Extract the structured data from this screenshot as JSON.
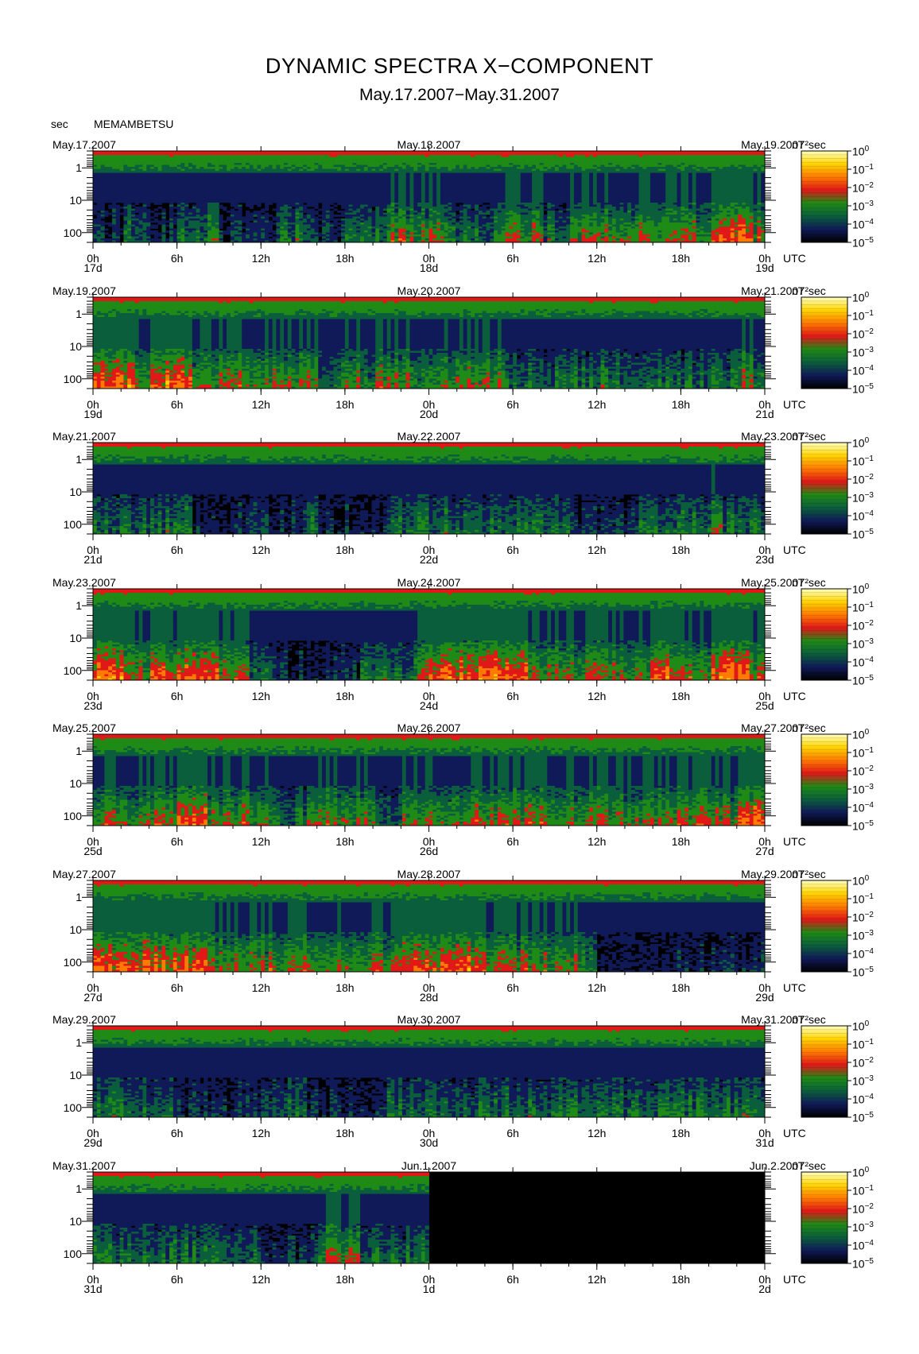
{
  "title": "DYNAMIC SPECTRA X−COMPONENT",
  "subtitle": "May.17.2007−May.31.2007",
  "unit_label": "sec",
  "station": "MEMAMBETSU",
  "utc_label": "UTC",
  "colorbar_unit": "nT²sec",
  "colors": {
    "background": "#000000",
    "colormap": [
      "#000000",
      "#101a58",
      "#0b5e3c",
      "#1f8a16",
      "#e01818",
      "#ff7a00",
      "#ffd400",
      "#ffffc0"
    ]
  },
  "chart_data": {
    "type": "heatmap",
    "x_axis": {
      "quantity": "time",
      "ticks": [
        "0h",
        "6h",
        "12h",
        "18h",
        "0h",
        "6h",
        "12h",
        "18h",
        "0h"
      ],
      "span_hours": 48
    },
    "y_axis": {
      "quantity": "period",
      "scale": "log",
      "ticks": [
        "1",
        "10",
        "100"
      ],
      "range": [
        0.3,
        200
      ]
    },
    "colorbar": {
      "scale": "log",
      "range": [
        1e-05,
        1
      ],
      "ticks": [
        "10",
        "10",
        "10",
        "10",
        "10",
        "10"
      ],
      "tick_exponents": [
        "0",
        "−1",
        "−2",
        "−3",
        "−4",
        "−5"
      ]
    },
    "panels": [
      {
        "start_date": "May.17.2007",
        "mid_date": "May.18.2007",
        "end_date": "May.19.2007",
        "day_labels": [
          "17d",
          "18d",
          "19d"
        ],
        "data_until_hours": 48,
        "activity": [
          1,
          1,
          2,
          1,
          1,
          1,
          2,
          2,
          3,
          1,
          1,
          1,
          1,
          2,
          2,
          1,
          1,
          1,
          2,
          2,
          2,
          3,
          3,
          3,
          3,
          2,
          2,
          2,
          2,
          3,
          3,
          3,
          2,
          2,
          3,
          3,
          3,
          3,
          3,
          3,
          3,
          3,
          3,
          3,
          4,
          4,
          4,
          3
        ]
      },
      {
        "start_date": "May.19.2007",
        "mid_date": "May.20.2007",
        "end_date": "May.21.2007",
        "day_labels": [
          "19d",
          "20d",
          "21d"
        ],
        "data_until_hours": 48,
        "activity": [
          4,
          4,
          4,
          3,
          4,
          4,
          4,
          3,
          3,
          3,
          3,
          3,
          3,
          3,
          3,
          3,
          2,
          2,
          3,
          2,
          3,
          3,
          3,
          2,
          3,
          3,
          3,
          3,
          3,
          2,
          2,
          2,
          2,
          2,
          2,
          2,
          2,
          2,
          2,
          2,
          2,
          2,
          2,
          2,
          2,
          2,
          3,
          2
        ]
      },
      {
        "start_date": "May.21.2007",
        "mid_date": "May.22.2007",
        "end_date": "May.23.2007",
        "day_labels": [
          "21d",
          "22d",
          "23d"
        ],
        "data_until_hours": 48,
        "activity": [
          2,
          2,
          2,
          2,
          2,
          2,
          2,
          1,
          1,
          1,
          1,
          1,
          1,
          1,
          1,
          2,
          1,
          1,
          1,
          1,
          1,
          2,
          2,
          2,
          2,
          2,
          2,
          2,
          2,
          2,
          2,
          2,
          2,
          2,
          1,
          1,
          1,
          1,
          1,
          2,
          2,
          2,
          2,
          2,
          3,
          2,
          2,
          2
        ]
      },
      {
        "start_date": "May.23.2007",
        "mid_date": "May.24.2007",
        "end_date": "May.25.2007",
        "day_labels": [
          "23d",
          "24d",
          "25d"
        ],
        "data_until_hours": 48,
        "activity": [
          4,
          4,
          4,
          3,
          4,
          3,
          4,
          4,
          4,
          3,
          3,
          2,
          2,
          1,
          1,
          1,
          1,
          1,
          1,
          2,
          2,
          2,
          2,
          3,
          4,
          4,
          4,
          4,
          4,
          4,
          4,
          3,
          3,
          3,
          3,
          3,
          3,
          3,
          3,
          3,
          4,
          3,
          3,
          3,
          4,
          4,
          4,
          3
        ]
      },
      {
        "start_date": "May.25.2007",
        "mid_date": "May.26.2007",
        "end_date": "May.27.2007",
        "day_labels": [
          "25d",
          "26d",
          "27d"
        ],
        "data_until_hours": 48,
        "activity": [
          3,
          3,
          3,
          3,
          3,
          3,
          4,
          4,
          3,
          3,
          3,
          3,
          3,
          2,
          2,
          3,
          3,
          3,
          3,
          3,
          2,
          2,
          3,
          3,
          3,
          3,
          3,
          3,
          3,
          3,
          3,
          3,
          3,
          3,
          3,
          3,
          3,
          3,
          3,
          3,
          3,
          3,
          3,
          3,
          3,
          3,
          4,
          4
        ]
      },
      {
        "start_date": "May.27.2007",
        "mid_date": "May.28.2007",
        "end_date": "May.29.2007",
        "day_labels": [
          "27d",
          "28d",
          "29d"
        ],
        "data_until_hours": 48,
        "activity": [
          4,
          4,
          4,
          4,
          4,
          4,
          4,
          4,
          3,
          3,
          3,
          3,
          3,
          3,
          3,
          3,
          3,
          3,
          3,
          3,
          3,
          3,
          4,
          4,
          4,
          4,
          4,
          4,
          3,
          3,
          3,
          3,
          3,
          3,
          3,
          2,
          0,
          0,
          0,
          0,
          0,
          1,
          1,
          1,
          1,
          1,
          1,
          1
        ]
      },
      {
        "start_date": "May.29.2007",
        "mid_date": "May.30.2007",
        "end_date": "May.31.2007",
        "day_labels": [
          "29d",
          "30d",
          "31d"
        ],
        "data_until_hours": 48,
        "activity": [
          2,
          2,
          2,
          2,
          2,
          2,
          1,
          1,
          1,
          1,
          1,
          1,
          1,
          2,
          2,
          1,
          1,
          1,
          1,
          1,
          1,
          2,
          2,
          2,
          2,
          2,
          2,
          2,
          2,
          2,
          2,
          2,
          2,
          2,
          2,
          2,
          2,
          2,
          2,
          2,
          2,
          2,
          2,
          2,
          2,
          2,
          2,
          2
        ]
      },
      {
        "start_date": "May.31.2007",
        "mid_date": "Jun.1.2007",
        "end_date": "Jun.2.2007",
        "day_labels": [
          "31d",
          "1d",
          "2d"
        ],
        "data_until_hours": 24,
        "activity": [
          2,
          2,
          2,
          2,
          2,
          2,
          2,
          2,
          2,
          2,
          2,
          2,
          1,
          1,
          1,
          1,
          3,
          3,
          3,
          2,
          2,
          2,
          2,
          2
        ]
      }
    ]
  }
}
